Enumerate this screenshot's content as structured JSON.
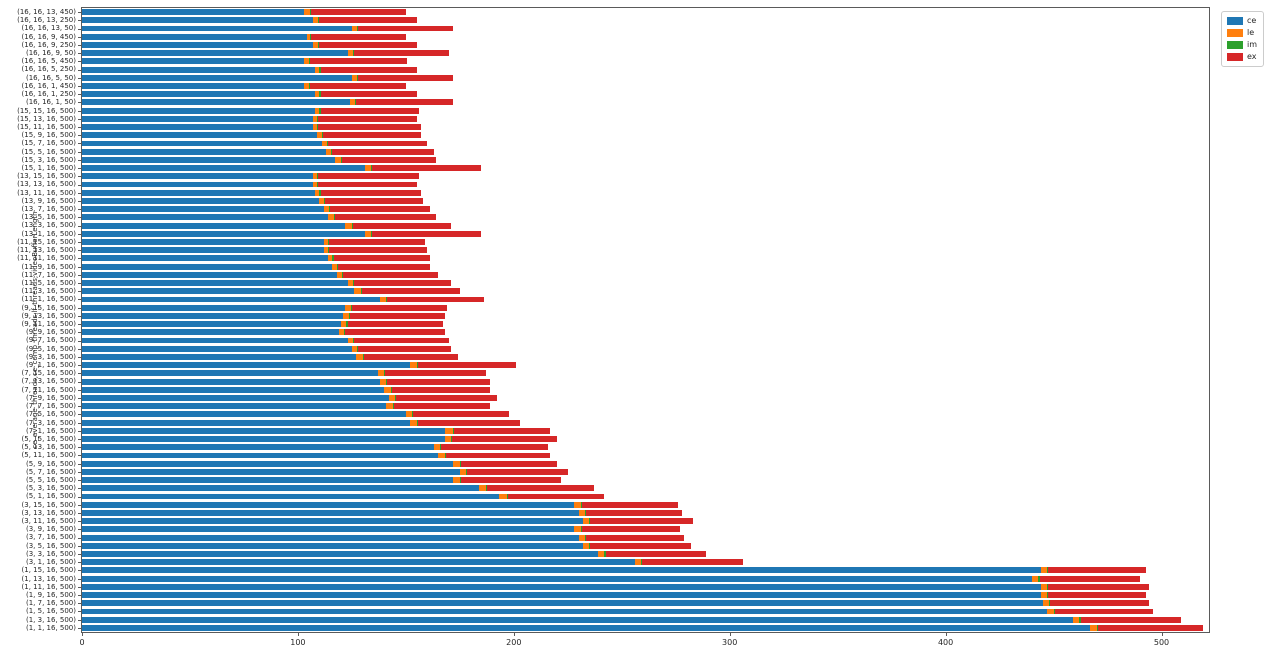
{
  "figure": {
    "background": "#ffffff"
  },
  "legend": {
    "entries": [
      {
        "label": "ce",
        "color": "#1f77b4"
      },
      {
        "label": "le",
        "color": "#ff7f0e"
      },
      {
        "label": "im",
        "color": "#2ca02c"
      },
      {
        "label": "ex",
        "color": "#d62728"
      }
    ]
  },
  "chart_data": {
    "type": "bar",
    "orientation": "horizontal",
    "stacked": true,
    "title": "",
    "xlabel": "",
    "ylabel": "ce_average_threads,ce_comp_threads,lf_threads,videoBufferLength",
    "xlim": [
      0,
      522
    ],
    "x_ticks": [
      0,
      100,
      200,
      300,
      400,
      500
    ],
    "grid": false,
    "legend_position": "upper right, outside axes",
    "categories": [
      "(16, 16, 13, 450)",
      "(16, 16, 13, 250)",
      "(16, 16, 13, 50)",
      "(16, 16, 9, 450)",
      "(16, 16, 9, 250)",
      "(16, 16, 9, 50)",
      "(16, 16, 5, 450)",
      "(16, 16, 5, 250)",
      "(16, 16, 5, 50)",
      "(16, 16, 1, 450)",
      "(16, 16, 1, 250)",
      "(16, 16, 1, 50)",
      "(15, 15, 16, 500)",
      "(15, 13, 16, 500)",
      "(15, 11, 16, 500)",
      "(15, 9, 16, 500)",
      "(15, 7, 16, 500)",
      "(15, 5, 16, 500)",
      "(15, 3, 16, 500)",
      "(15, 1, 16, 500)",
      "(13, 15, 16, 500)",
      "(13, 13, 16, 500)",
      "(13, 11, 16, 500)",
      "(13, 9, 16, 500)",
      "(13, 7, 16, 500)",
      "(13, 5, 16, 500)",
      "(13, 3, 16, 500)",
      "(13, 1, 16, 500)",
      "(11, 15, 16, 500)",
      "(11, 13, 16, 500)",
      "(11, 11, 16, 500)",
      "(11, 9, 16, 500)",
      "(11, 7, 16, 500)",
      "(11, 5, 16, 500)",
      "(11, 3, 16, 500)",
      "(11, 1, 16, 500)",
      "(9, 15, 16, 500)",
      "(9, 13, 16, 500)",
      "(9, 11, 16, 500)",
      "(9, 9, 16, 500)",
      "(9, 7, 16, 500)",
      "(9, 5, 16, 500)",
      "(9, 3, 16, 500)",
      "(9, 1, 16, 500)",
      "(7, 15, 16, 500)",
      "(7, 13, 16, 500)",
      "(7, 11, 16, 500)",
      "(7, 9, 16, 500)",
      "(7, 7, 16, 500)",
      "(7, 5, 16, 500)",
      "(7, 3, 16, 500)",
      "(7, 1, 16, 500)",
      "(5, 15, 16, 500)",
      "(5, 13, 16, 500)",
      "(5, 11, 16, 500)",
      "(5, 9, 16, 500)",
      "(5, 7, 16, 500)",
      "(5, 5, 16, 500)",
      "(5, 3, 16, 500)",
      "(5, 1, 16, 500)",
      "(3, 15, 16, 500)",
      "(3, 13, 16, 500)",
      "(3, 11, 16, 500)",
      "(3, 9, 16, 500)",
      "(3, 7, 16, 500)",
      "(3, 5, 16, 500)",
      "(3, 3, 16, 500)",
      "(3, 1, 16, 500)",
      "(1, 15, 16, 500)",
      "(1, 13, 16, 500)",
      "(1, 11, 16, 500)",
      "(1, 9, 16, 500)",
      "(1, 7, 16, 500)",
      "(1, 5, 16, 500)",
      "(1, 3, 16, 500)",
      "(1, 1, 16, 500)"
    ],
    "series": [
      {
        "name": "ce",
        "color": "#1f77b4",
        "values": [
          103,
          107,
          125,
          104,
          107,
          123,
          103,
          108,
          125,
          103,
          108,
          124,
          108,
          107,
          107,
          109,
          111,
          113,
          117,
          131,
          107,
          107,
          108,
          110,
          112,
          114,
          122,
          131,
          112,
          112,
          114,
          116,
          118,
          123,
          126,
          138,
          122,
          121,
          120,
          119,
          123,
          125,
          127,
          152,
          137,
          138,
          140,
          142,
          141,
          150,
          152,
          168,
          168,
          163,
          165,
          172,
          175,
          172,
          184,
          193,
          228,
          230,
          232,
          228,
          230,
          232,
          239,
          256,
          444,
          440,
          444,
          444,
          445,
          447,
          459,
          467
        ]
      },
      {
        "name": "le",
        "color": "#ff7f0e",
        "values": [
          2.5,
          2.5,
          2.5,
          1.5,
          2.5,
          2.5,
          2,
          2,
          2.5,
          2,
          2,
          2.5,
          2,
          2,
          2,
          2,
          2.5,
          2.5,
          3,
          3,
          2,
          2,
          2,
          2,
          2.5,
          2.5,
          3,
          3,
          2,
          2,
          2,
          2,
          2.5,
          2.5,
          3,
          3,
          2.5,
          2.5,
          2.5,
          2.5,
          2.5,
          2.5,
          3,
          3,
          3,
          3,
          3,
          3,
          3,
          3,
          3,
          4,
          3,
          3,
          3,
          3,
          3,
          3,
          3,
          4,
          3,
          3,
          3,
          3,
          3,
          3,
          3,
          3,
          3,
          3,
          3,
          3,
          3,
          3,
          3,
          3
        ]
      },
      {
        "name": "im",
        "color": "#2ca02c",
        "values": [
          0.5,
          0.5,
          0.5,
          0.5,
          0.5,
          0.5,
          0.5,
          0.5,
          0.5,
          0.5,
          0.5,
          0.5,
          0.5,
          0.5,
          0.5,
          0.5,
          0.5,
          0.5,
          0.5,
          0.5,
          0.5,
          0.5,
          0.5,
          0.5,
          0.5,
          0.5,
          0.5,
          0.5,
          0.5,
          0.5,
          0.5,
          0.5,
          0.5,
          0.5,
          0.5,
          0.5,
          0.5,
          0.5,
          0.5,
          0.5,
          0.5,
          0.5,
          0.5,
          0.5,
          0.5,
          0.5,
          0.5,
          0.5,
          0.5,
          0.5,
          0.5,
          0.5,
          0.5,
          0.5,
          0.5,
          0.5,
          0.5,
          0.5,
          0.5,
          0.5,
          0.5,
          0.5,
          0.5,
          0.5,
          0.5,
          0.5,
          0.5,
          0.5,
          0.5,
          0.5,
          0.5,
          0.5,
          0.5,
          0.5,
          0.5,
          0.5
        ]
      },
      {
        "name": "ex",
        "color": "#d62728",
        "values": [
          44,
          45,
          44,
          44,
          45,
          44,
          45,
          44.5,
          44,
          44.5,
          44.5,
          45,
          45.5,
          45.5,
          47.5,
          45.5,
          46,
          47,
          43.5,
          50.5,
          46.5,
          45.5,
          46.5,
          45.5,
          46,
          47,
          45.5,
          50.5,
          44.5,
          45.5,
          44.5,
          42.5,
          44,
          45,
          45.5,
          44.5,
          44,
          44,
          44,
          46,
          44,
          43,
          43.5,
          45.5,
          46.5,
          47.5,
          45.5,
          46.5,
          44.5,
          44.5,
          47.5,
          44.5,
          48.5,
          49.5,
          48.5,
          44.5,
          46.5,
          46.5,
          49.5,
          44.5,
          44.5,
          44.5,
          47.5,
          45.5,
          45.5,
          46.5,
          46.5,
          46.5,
          45.5,
          46.5,
          46.5,
          45.5,
          45.5,
          45.5,
          46.5,
          48.5
        ]
      }
    ]
  }
}
